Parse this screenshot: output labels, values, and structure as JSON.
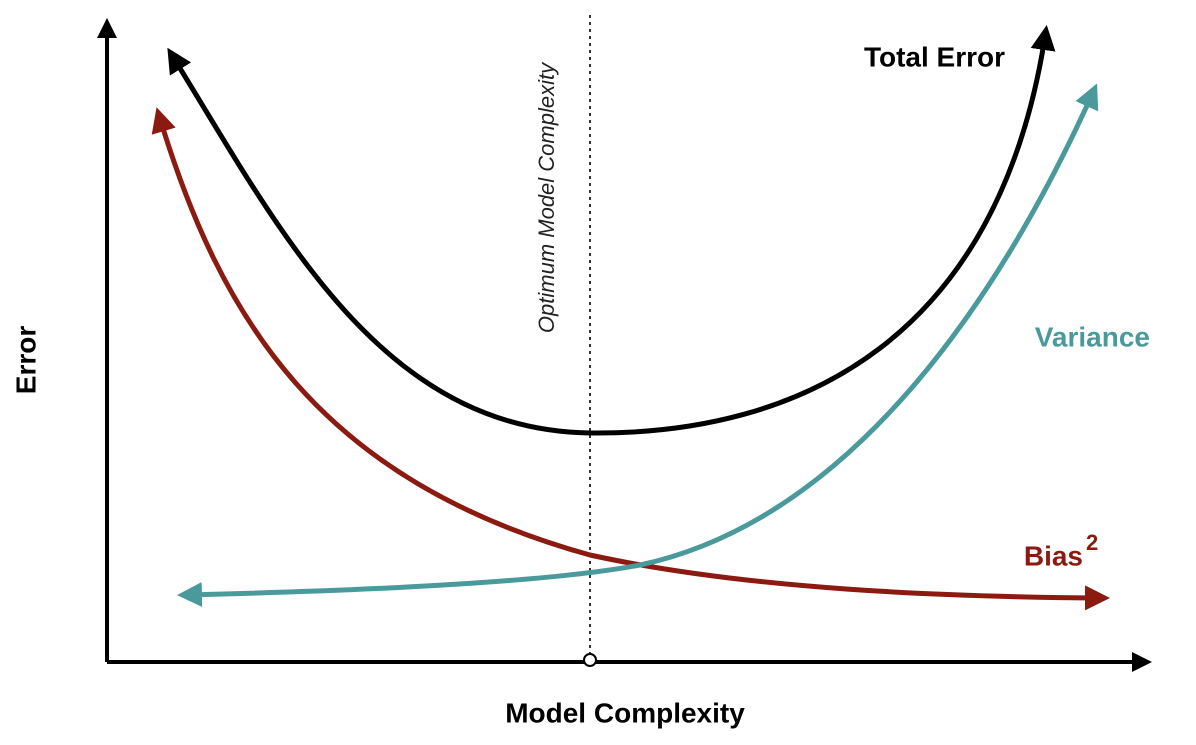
{
  "axes": {
    "y_label": "Error",
    "x_label": "Model Complexity"
  },
  "annotation": "Optimum Model Complexity",
  "curves": [
    {
      "label": "Total Error"
    },
    {
      "label": "Variance"
    },
    {
      "label": "Bias",
      "superscript": "2"
    }
  ]
}
